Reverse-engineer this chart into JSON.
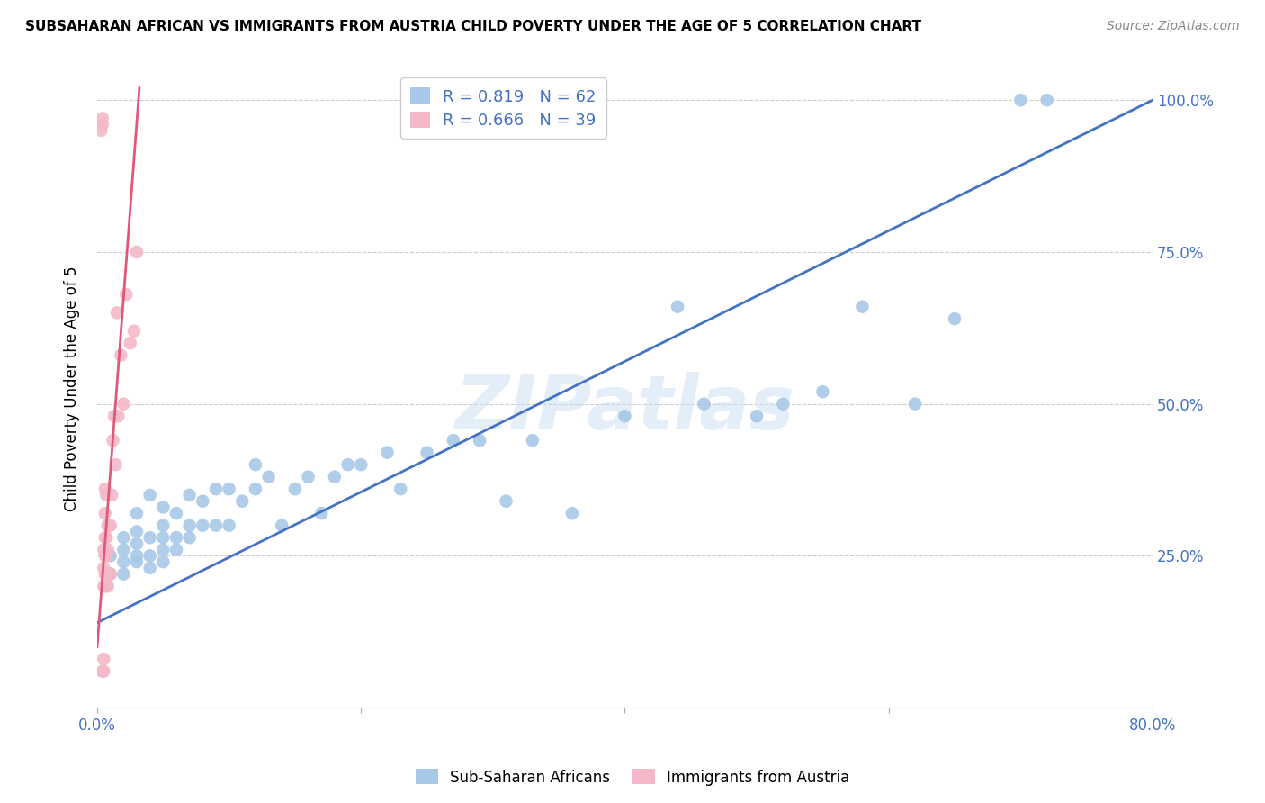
{
  "title": "SUBSAHARAN AFRICAN VS IMMIGRANTS FROM AUSTRIA CHILD POVERTY UNDER THE AGE OF 5 CORRELATION CHART",
  "source": "Source: ZipAtlas.com",
  "ylabel": "Child Poverty Under the Age of 5",
  "x_min": 0.0,
  "x_max": 0.8,
  "y_min": 0.0,
  "y_max": 1.05,
  "x_ticks": [
    0.0,
    0.2,
    0.4,
    0.6,
    0.8
  ],
  "x_tick_labels": [
    "0.0%",
    "",
    "",
    "",
    "80.0%"
  ],
  "y_ticks_right": [
    0.0,
    0.25,
    0.5,
    0.75,
    1.0
  ],
  "y_tick_labels_right": [
    "",
    "25.0%",
    "50.0%",
    "75.0%",
    "100.0%"
  ],
  "blue_R": "0.819",
  "blue_N": "62",
  "pink_R": "0.666",
  "pink_N": "39",
  "blue_color": "#a8c8e8",
  "blue_line_color": "#4472c4",
  "pink_color": "#f4b8c8",
  "pink_line_color": "#e05878",
  "watermark": "ZIPatlas",
  "blue_scatter_x": [
    0.01,
    0.01,
    0.02,
    0.02,
    0.02,
    0.02,
    0.03,
    0.03,
    0.03,
    0.03,
    0.03,
    0.04,
    0.04,
    0.04,
    0.04,
    0.05,
    0.05,
    0.05,
    0.05,
    0.05,
    0.06,
    0.06,
    0.06,
    0.07,
    0.07,
    0.07,
    0.08,
    0.08,
    0.09,
    0.09,
    0.1,
    0.1,
    0.11,
    0.12,
    0.12,
    0.13,
    0.14,
    0.15,
    0.16,
    0.17,
    0.18,
    0.19,
    0.2,
    0.22,
    0.23,
    0.25,
    0.27,
    0.29,
    0.31,
    0.33,
    0.36,
    0.4,
    0.44,
    0.46,
    0.5,
    0.52,
    0.55,
    0.58,
    0.62,
    0.65,
    0.7,
    0.72
  ],
  "blue_scatter_y": [
    0.22,
    0.25,
    0.22,
    0.24,
    0.26,
    0.28,
    0.24,
    0.25,
    0.27,
    0.29,
    0.32,
    0.23,
    0.25,
    0.28,
    0.35,
    0.24,
    0.26,
    0.28,
    0.3,
    0.33,
    0.26,
    0.28,
    0.32,
    0.28,
    0.3,
    0.35,
    0.3,
    0.34,
    0.3,
    0.36,
    0.3,
    0.36,
    0.34,
    0.36,
    0.4,
    0.38,
    0.3,
    0.36,
    0.38,
    0.32,
    0.38,
    0.4,
    0.4,
    0.42,
    0.36,
    0.42,
    0.44,
    0.44,
    0.34,
    0.44,
    0.32,
    0.48,
    0.66,
    0.5,
    0.48,
    0.5,
    0.52,
    0.66,
    0.5,
    0.64,
    1.0,
    1.0
  ],
  "pink_scatter_x": [
    0.003,
    0.004,
    0.004,
    0.004,
    0.005,
    0.005,
    0.005,
    0.005,
    0.005,
    0.006,
    0.006,
    0.006,
    0.006,
    0.006,
    0.007,
    0.007,
    0.007,
    0.007,
    0.007,
    0.008,
    0.008,
    0.008,
    0.008,
    0.009,
    0.009,
    0.01,
    0.01,
    0.011,
    0.012,
    0.013,
    0.014,
    0.015,
    0.016,
    0.018,
    0.02,
    0.022,
    0.025,
    0.028,
    0.03
  ],
  "pink_scatter_y": [
    0.95,
    0.96,
    0.97,
    0.06,
    0.06,
    0.08,
    0.2,
    0.23,
    0.26,
    0.22,
    0.25,
    0.28,
    0.32,
    0.36,
    0.2,
    0.22,
    0.25,
    0.28,
    0.35,
    0.2,
    0.22,
    0.26,
    0.3,
    0.22,
    0.3,
    0.22,
    0.3,
    0.35,
    0.44,
    0.48,
    0.4,
    0.65,
    0.48,
    0.58,
    0.5,
    0.68,
    0.6,
    0.62,
    0.75
  ],
  "blue_line_x": [
    0.0,
    0.8
  ],
  "blue_line_y": [
    0.14,
    1.0
  ],
  "pink_line_x": [
    0.0,
    0.032
  ],
  "pink_line_y": [
    0.1,
    1.02
  ]
}
